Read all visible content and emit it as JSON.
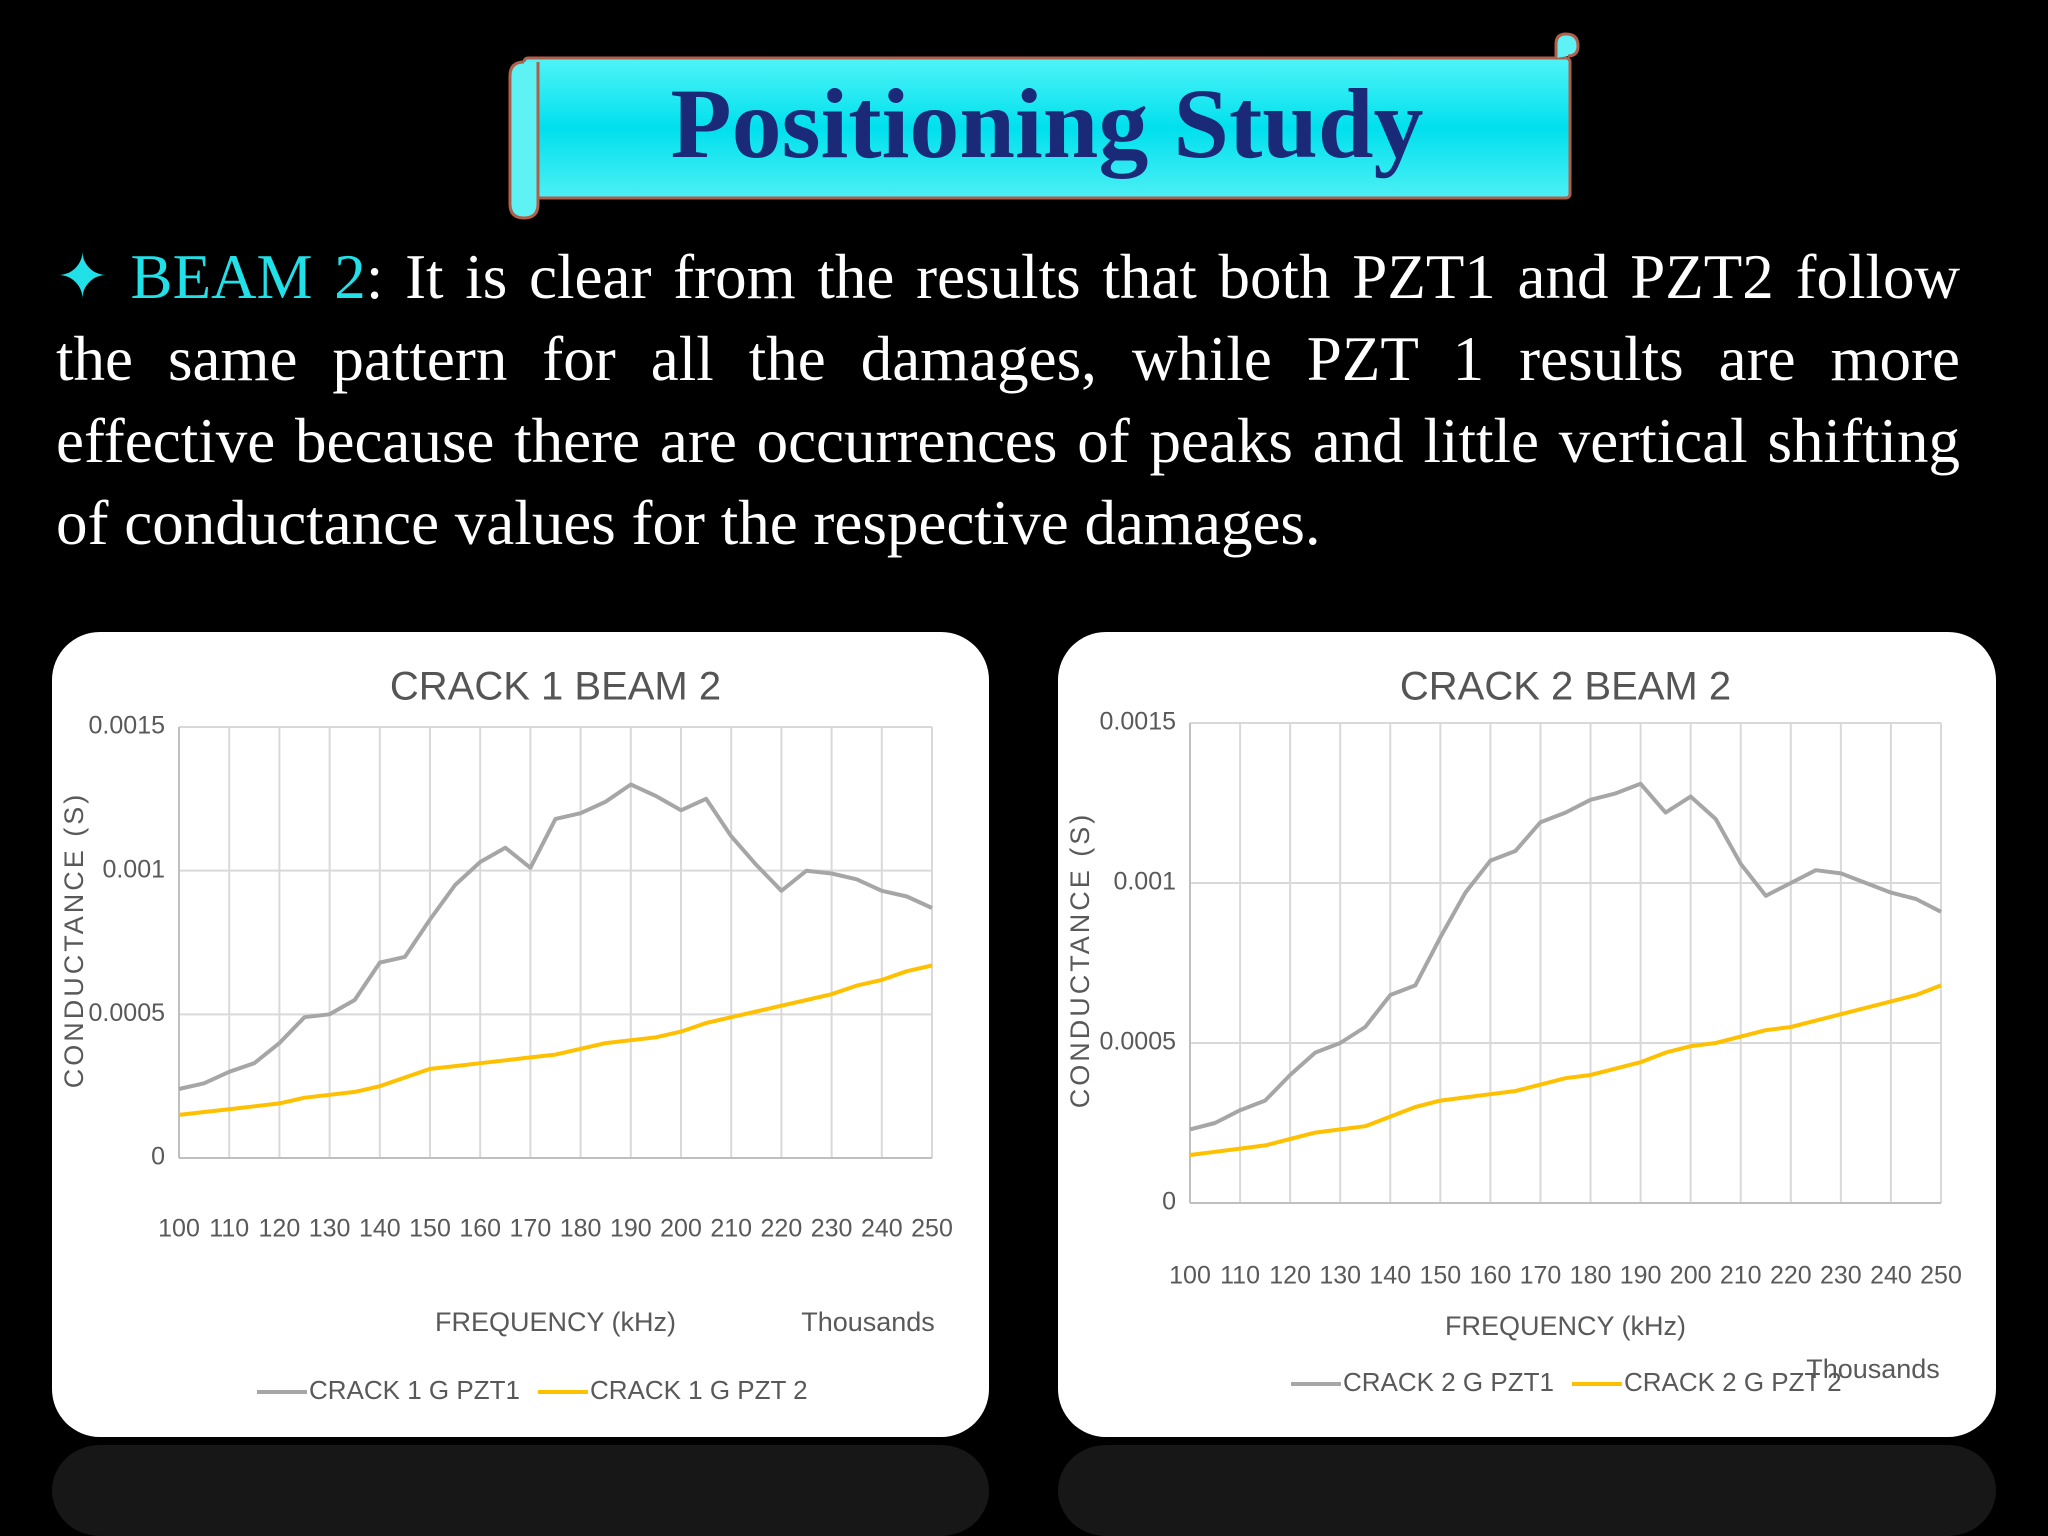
{
  "title": "Positioning Study",
  "body": {
    "bullet": "✦",
    "label": "BEAM 2",
    "text": ": It is clear from the results that both PZT1 and PZT2 follow the same pattern for all the damages, while PZT 1 results are more effective because there are occurrences of peaks and little vertical shifting of conductance values for the respective damages."
  },
  "chart_data": [
    {
      "type": "line",
      "title": "CRACK 1 BEAM 2",
      "x_label": "FREQUENCY (kHz)",
      "y_label": "CONDUCTANCE  (S)",
      "x_unit_note": "Thousands",
      "x": [
        100,
        105,
        110,
        115,
        120,
        125,
        130,
        135,
        140,
        145,
        150,
        155,
        160,
        165,
        170,
        175,
        180,
        185,
        190,
        195,
        200,
        205,
        210,
        215,
        220,
        225,
        230,
        235,
        240,
        245,
        250
      ],
      "series": [
        {
          "name": "CRACK 1 G PZT1",
          "color": "#a6a6a6",
          "values": [
            0.00024,
            0.00026,
            0.0003,
            0.00033,
            0.0004,
            0.00049,
            0.0005,
            0.00055,
            0.00068,
            0.0007,
            0.00083,
            0.00095,
            0.00103,
            0.00108,
            0.00101,
            0.00118,
            0.0012,
            0.00124,
            0.0013,
            0.00126,
            0.00121,
            0.00125,
            0.00112,
            0.00102,
            0.00093,
            0.001,
            0.00099,
            0.00097,
            0.00093,
            0.00091,
            0.00087
          ]
        },
        {
          "name": "CRACK 1 G PZT 2",
          "color": "#ffc000",
          "values": [
            0.00015,
            0.00016,
            0.00017,
            0.00018,
            0.00019,
            0.00021,
            0.00022,
            0.00023,
            0.00025,
            0.00028,
            0.00031,
            0.00032,
            0.00033,
            0.00034,
            0.00035,
            0.00036,
            0.00038,
            0.0004,
            0.00041,
            0.00042,
            0.00044,
            0.00047,
            0.00049,
            0.00051,
            0.00053,
            0.00055,
            0.00057,
            0.0006,
            0.00062,
            0.00065,
            0.00067
          ]
        }
      ],
      "xlim": [
        100,
        250
      ],
      "xticks": [
        100,
        110,
        120,
        130,
        140,
        150,
        160,
        170,
        180,
        190,
        200,
        210,
        220,
        230,
        240,
        250
      ],
      "ylim": [
        0,
        0.0015
      ],
      "yticks": [
        0,
        0.0005,
        0.001,
        0.0015
      ],
      "grid": true,
      "legend": "bottom"
    },
    {
      "type": "line",
      "title": "CRACK 2 BEAM 2",
      "x_label": "FREQUENCY (kHz)",
      "y_label": "CONDUCTANCE  (S)",
      "x_unit_note": "Thousands",
      "x": [
        100,
        105,
        110,
        115,
        120,
        125,
        130,
        135,
        140,
        145,
        150,
        155,
        160,
        165,
        170,
        175,
        180,
        185,
        190,
        195,
        200,
        205,
        210,
        215,
        220,
        225,
        230,
        235,
        240,
        245,
        250
      ],
      "series": [
        {
          "name": "CRACK 2 G PZT1",
          "color": "#a6a6a6",
          "values": [
            0.00023,
            0.00025,
            0.00029,
            0.00032,
            0.0004,
            0.00047,
            0.0005,
            0.00055,
            0.00065,
            0.00068,
            0.00083,
            0.00097,
            0.00107,
            0.0011,
            0.00119,
            0.00122,
            0.00126,
            0.00128,
            0.00131,
            0.00122,
            0.00127,
            0.0012,
            0.00106,
            0.00096,
            0.001,
            0.00104,
            0.00103,
            0.001,
            0.00097,
            0.00095,
            0.00091
          ]
        },
        {
          "name": "CRACK 2 G PZT 2",
          "color": "#ffc000",
          "values": [
            0.00015,
            0.00016,
            0.00017,
            0.00018,
            0.0002,
            0.00022,
            0.00023,
            0.00024,
            0.00027,
            0.0003,
            0.00032,
            0.00033,
            0.00034,
            0.00035,
            0.00037,
            0.00039,
            0.0004,
            0.00042,
            0.00044,
            0.00047,
            0.00049,
            0.0005,
            0.00052,
            0.00054,
            0.00055,
            0.00057,
            0.00059,
            0.00061,
            0.00063,
            0.00065,
            0.00068
          ]
        }
      ],
      "xlim": [
        100,
        250
      ],
      "xticks": [
        100,
        110,
        120,
        130,
        140,
        150,
        160,
        170,
        180,
        190,
        200,
        210,
        220,
        230,
        240,
        250
      ],
      "ylim": [
        0,
        0.0015
      ],
      "yticks": [
        0,
        0.0005,
        0.001,
        0.0015
      ],
      "grid": true,
      "legend": "bottom"
    }
  ]
}
